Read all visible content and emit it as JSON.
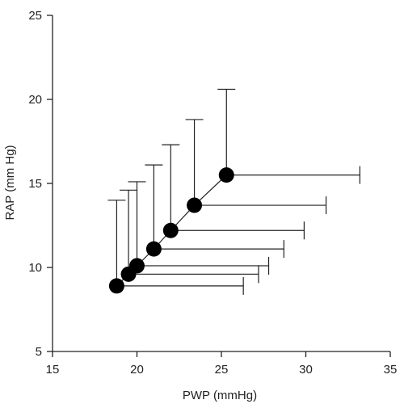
{
  "chart_data": {
    "type": "scatter",
    "title": "",
    "xlabel": "PWP (mmHg)",
    "ylabel": "RAP (mm Hg)",
    "xlim": [
      15,
      35
    ],
    "ylim": [
      5,
      25
    ],
    "xticks": [
      15,
      20,
      25,
      30,
      35
    ],
    "yticks": [
      5,
      10,
      15,
      20,
      25
    ],
    "grid": false,
    "connect_points": true,
    "series": [
      {
        "points": [
          {
            "x": 18.8,
            "y": 8.9,
            "x_err": 7.5,
            "y_err": 5.1
          },
          {
            "x": 19.5,
            "y": 9.6,
            "x_err": 7.7,
            "y_err": 5.0
          },
          {
            "x": 20.0,
            "y": 10.1,
            "x_err": 7.8,
            "y_err": 5.0
          },
          {
            "x": 21.0,
            "y": 11.1,
            "x_err": 7.7,
            "y_err": 5.0
          },
          {
            "x": 22.0,
            "y": 12.2,
            "x_err": 7.9,
            "y_err": 5.1
          },
          {
            "x": 23.4,
            "y": 13.7,
            "x_err": 7.8,
            "y_err": 5.1
          },
          {
            "x": 25.3,
            "y": 15.5,
            "x_err": 7.9,
            "y_err": 5.1
          }
        ]
      }
    ]
  }
}
